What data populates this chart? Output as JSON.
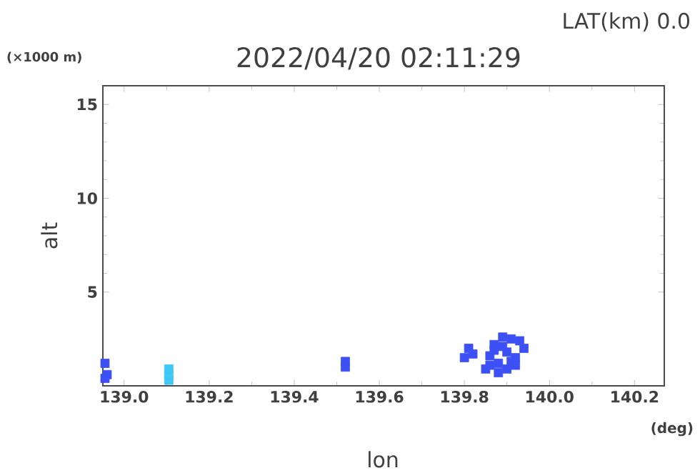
{
  "chart_data": {
    "type": "scatter",
    "title": "2022/04/20 02:11:29",
    "subtitle": "LAT(km) 0.0",
    "xlabel": "lon",
    "ylabel": "alt",
    "annotations": [
      "(×1000 m)",
      "(deg)"
    ],
    "marker": "square",
    "xlim": [
      138.95,
      140.27
    ],
    "ylim": [
      0,
      16
    ],
    "xticks": [
      {
        "value": 139.0,
        "label": "139.0"
      },
      {
        "value": 139.2,
        "label": "139.2"
      },
      {
        "value": 139.4,
        "label": "139.4"
      },
      {
        "value": 139.6,
        "label": "139.6"
      },
      {
        "value": 139.8,
        "label": "139.8"
      },
      {
        "value": 140.0,
        "label": "140.0"
      },
      {
        "value": 140.2,
        "label": "140.2"
      }
    ],
    "yticks": [
      5,
      10,
      15
    ],
    "series": [
      {
        "color": "#3d50f5",
        "x": [
          138.955,
          138.955,
          138.96,
          139.52,
          139.52,
          139.8,
          139.81,
          139.82,
          139.85,
          139.86,
          139.87,
          139.88,
          139.89,
          139.9,
          139.91,
          139.92,
          139.93,
          139.94,
          139.86,
          139.88,
          139.9,
          139.92,
          139.87,
          139.89,
          139.91
        ],
        "values": [
          0.4,
          1.2,
          0.6,
          1.0,
          1.3,
          1.5,
          2.0,
          1.7,
          0.9,
          1.6,
          2.2,
          1.2,
          2.6,
          1.8,
          2.5,
          1.5,
          2.4,
          2.0,
          1.1,
          0.7,
          0.9,
          1.1,
          1.9,
          2.1,
          1.3
        ]
      },
      {
        "color": "#3ec8f8",
        "x": [
          139.105,
          139.105,
          139.105
        ],
        "values": [
          0.3,
          0.6,
          0.9
        ]
      }
    ]
  }
}
